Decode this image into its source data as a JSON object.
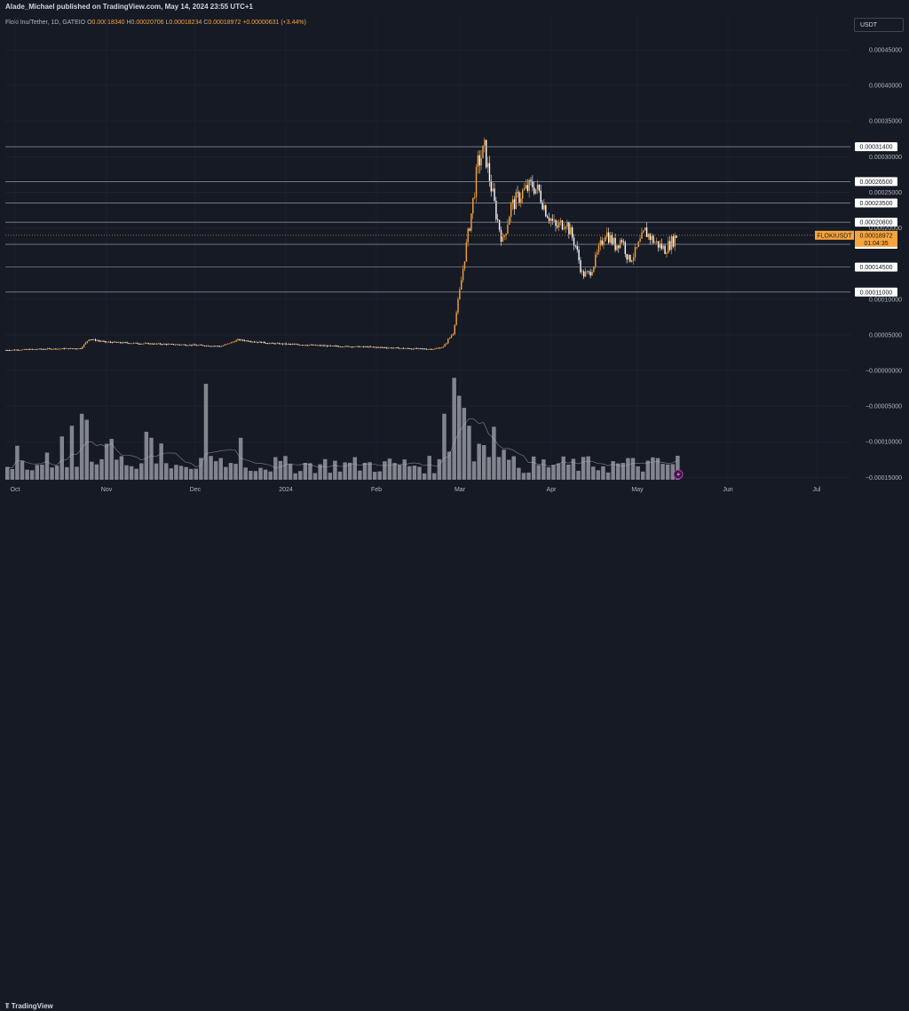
{
  "header": {
    "published_text": "Alade_Michael published on TradingView.com, May 14, 2024 23:55 UTC+1",
    "symbol": "Floki Inu/Tether, 1D, GATEIO",
    "open_label": "O",
    "open": "0.00018340",
    "high_label": "H",
    "high": "0.00020706",
    "low_label": "L",
    "low": "0.00018234",
    "close_label": "C",
    "close": "0.00018972",
    "change": "+0.00000631 (+3.44%)"
  },
  "currency_button": "USDT",
  "footer": {
    "logo_text": "TradingView"
  },
  "colors": {
    "background": "#161a25",
    "up_candle": "#f7a53b",
    "down_candle": "#ffffff",
    "volume": "#9598a1",
    "price_tag": "#f7a53b",
    "level_line": "#9598a1"
  },
  "chart_data": {
    "type": "candlestick",
    "y_axis": {
      "ticks": [
        "0.00045000",
        "0.00040000",
        "0.00035000",
        "0.00030000",
        "0.00025000",
        "0.00020000",
        "0.00010000",
        "0.00005000",
        "−0.00000000",
        "−0.00005000",
        "−0.00010000",
        "−0.00015000"
      ],
      "tick_values": [
        0.00045,
        0.0004,
        0.00035,
        0.0003,
        0.00025,
        0.0002,
        0.0001,
        5e-05,
        0,
        -5e-05,
        -0.0001,
        -0.00015
      ],
      "range": [
        -0.00015,
        0.00048
      ]
    },
    "x_axis": {
      "labels": [
        "Oct",
        "Nov",
        "Dec",
        "2024",
        "Feb",
        "Mar",
        "Apr",
        "May",
        "Jun",
        "Jul"
      ]
    },
    "horizontal_levels": [
      {
        "value": 0.000314,
        "label": "0.00031400"
      },
      {
        "value": 0.000265,
        "label": "0.00026500"
      },
      {
        "value": 0.000235,
        "label": "0.00023500"
      },
      {
        "value": 0.000208,
        "label": "0.00020800"
      },
      {
        "value": 0.000177,
        "label": "0.00017700"
      },
      {
        "value": 0.000145,
        "label": "0.00014500"
      },
      {
        "value": 0.00011,
        "label": "0.00011000"
      }
    ],
    "current_price": {
      "symbol_label": "FLOKIUSDT",
      "value": 0.00018972,
      "label": "0.00018972",
      "countdown": "01:04:35"
    },
    "price_path_anchors": [
      [
        0,
        2.85e-05
      ],
      [
        20,
        3e-05
      ],
      [
        45,
        3.1e-05
      ],
      [
        50,
        4.4e-05
      ],
      [
        60,
        4e-05
      ],
      [
        80,
        3.8e-05
      ],
      [
        110,
        3.6e-05
      ],
      [
        130,
        3.4e-05
      ],
      [
        140,
        4.3e-05
      ],
      [
        160,
        3.8e-05
      ],
      [
        180,
        3.6e-05
      ],
      [
        200,
        3.4e-05
      ],
      [
        220,
        3.3e-05
      ],
      [
        240,
        3.1e-05
      ],
      [
        258,
        3e-05
      ],
      [
        264,
        3.3e-05
      ],
      [
        270,
        5.3e-05
      ],
      [
        274,
        0.00011
      ],
      [
        277,
        0.00016
      ],
      [
        281,
        0.00022
      ],
      [
        285,
        0.00029
      ],
      [
        289,
        0.00031
      ],
      [
        292,
        0.00027
      ],
      [
        296,
        0.00022
      ],
      [
        300,
        0.00018
      ],
      [
        305,
        0.00023
      ],
      [
        312,
        0.00025
      ],
      [
        318,
        0.00026
      ],
      [
        322,
        0.00025
      ],
      [
        326,
        0.000225
      ],
      [
        332,
        0.0002
      ],
      [
        338,
        0.00021
      ],
      [
        344,
        0.000175
      ],
      [
        348,
        0.000135
      ],
      [
        352,
        0.000135
      ],
      [
        356,
        0.000155
      ],
      [
        362,
        0.000195
      ],
      [
        368,
        0.000175
      ],
      [
        372,
        0.000185
      ],
      [
        376,
        0.000155
      ],
      [
        380,
        0.000165
      ],
      [
        386,
        0.000195
      ],
      [
        392,
        0.00018
      ],
      [
        398,
        0.00017
      ],
      [
        403,
        0.000183
      ],
      [
        405,
        0.0001897
      ]
    ],
    "volume_spikes": [
      [
        40,
        0.45
      ],
      [
        45,
        0.55
      ],
      [
        48,
        0.5
      ],
      [
        60,
        0.3
      ],
      [
        85,
        0.4
      ],
      [
        87,
        0.35
      ],
      [
        120,
        0.8
      ],
      [
        140,
        0.35
      ],
      [
        265,
        0.55
      ],
      [
        270,
        0.85
      ],
      [
        272,
        0.7
      ],
      [
        276,
        0.6
      ],
      [
        278,
        0.45
      ],
      [
        285,
        0.3
      ],
      [
        300,
        0.25
      ],
      [
        404,
        0.2
      ]
    ],
    "total_bars": 406
  }
}
